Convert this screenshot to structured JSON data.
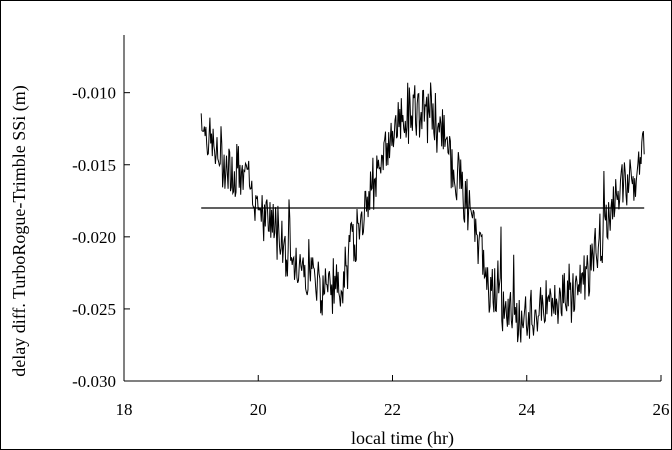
{
  "chart_data": {
    "type": "line",
    "xlabel": "local time (hr)",
    "ylabel": "delay diff. TurboRogue-Trimble SSi (m)",
    "xlim": [
      18,
      26
    ],
    "ylim": [
      -0.03,
      -0.006
    ],
    "xticks": [
      18,
      20,
      22,
      24,
      26
    ],
    "xtick_labels": [
      "18",
      "20",
      "22",
      "24",
      "26"
    ],
    "yticks": [
      -0.03,
      -0.025,
      -0.02,
      -0.015,
      -0.01
    ],
    "ytick_labels": [
      "-0.030",
      "-0.025",
      "-0.020",
      "-0.015",
      "-0.010"
    ],
    "grid": false,
    "series": [
      {
        "kind": "noisy-trace",
        "x": [
          19.15,
          19.25,
          19.4,
          19.6,
          19.8,
          20.0,
          20.2,
          20.4,
          20.6,
          20.8,
          21.0,
          21.2,
          21.4,
          21.6,
          21.8,
          22.0,
          22.2,
          22.4,
          22.6,
          22.8,
          23.0,
          23.2,
          23.4,
          23.6,
          23.8,
          24.0,
          24.2,
          24.4,
          24.6,
          24.8,
          25.0,
          25.2,
          25.4,
          25.6,
          25.75
        ],
        "y": [
          -0.0115,
          -0.013,
          -0.0145,
          -0.015,
          -0.016,
          -0.0175,
          -0.019,
          -0.0205,
          -0.0218,
          -0.0225,
          -0.0232,
          -0.0235,
          -0.0205,
          -0.018,
          -0.015,
          -0.0125,
          -0.0115,
          -0.0112,
          -0.0115,
          -0.0135,
          -0.016,
          -0.019,
          -0.022,
          -0.024,
          -0.0255,
          -0.0258,
          -0.025,
          -0.0245,
          -0.024,
          -0.023,
          -0.0215,
          -0.019,
          -0.017,
          -0.0155,
          -0.014
        ]
      },
      {
        "kind": "reference-line",
        "x": [
          19.15,
          25.75
        ],
        "y": [
          -0.018,
          -0.018
        ]
      }
    ]
  },
  "colors": {
    "line": "#000000",
    "background": "#ffffff"
  }
}
